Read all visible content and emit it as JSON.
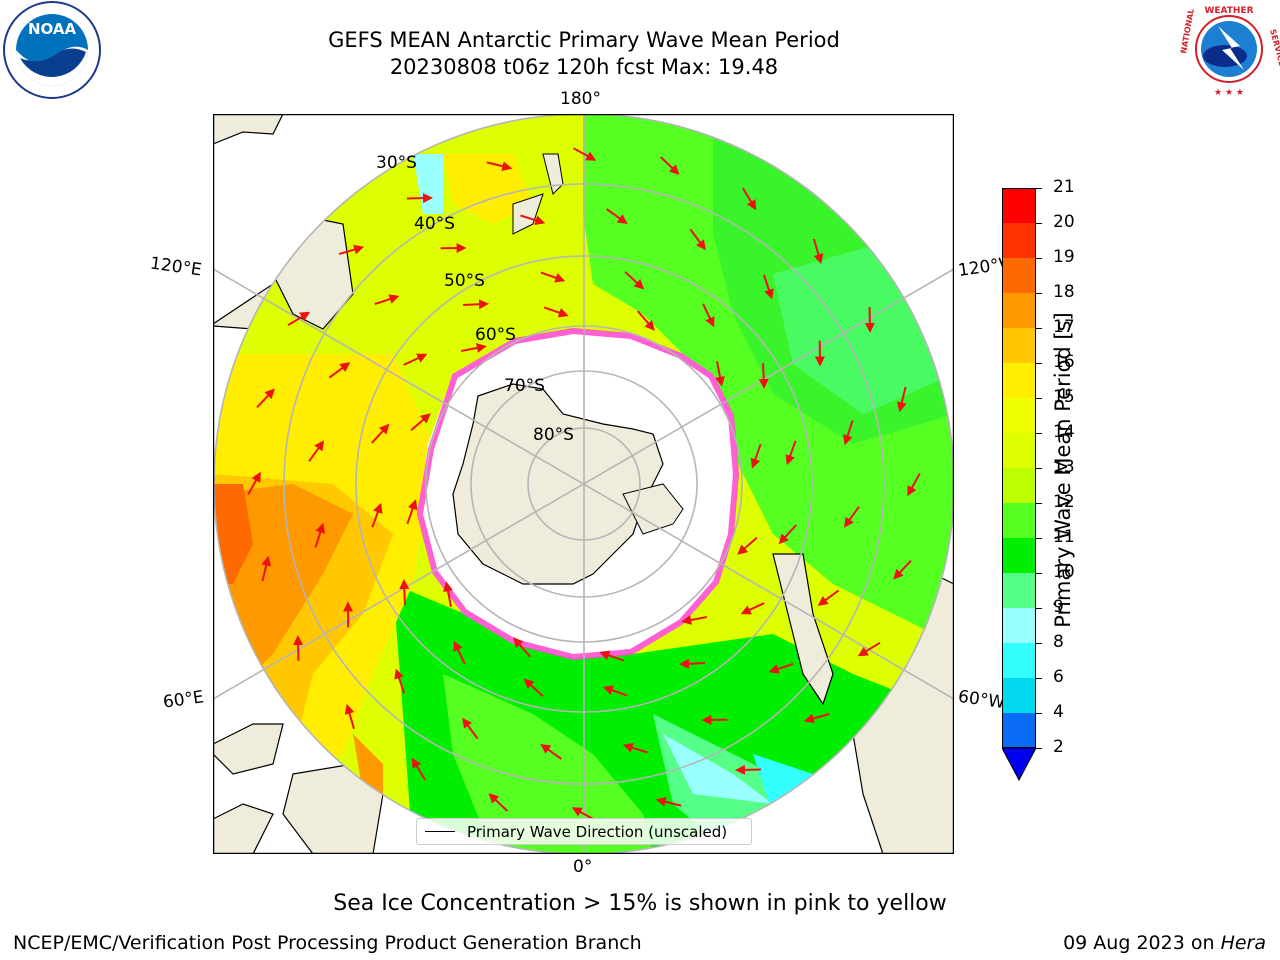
{
  "title": {
    "line1": "GEFS MEAN Antarctic Primary Wave Mean Period",
    "line2": "20230808 t06z 120h fcst   Max: 19.48"
  },
  "logos": {
    "left": "NOAA",
    "right": "NATIONAL WEATHER SERVICE"
  },
  "map": {
    "projection": "south-polar-stereographic",
    "longitude_labels": {
      "top": "180°",
      "bottom": "0°",
      "upper_left": "120°E",
      "upper_right": "120°W",
      "lower_left": "60°E",
      "lower_right": "60°W"
    },
    "latitude_labels": [
      "30°S",
      "40°S",
      "50°S",
      "60°S",
      "70°S",
      "80°S"
    ],
    "colors": {
      "land": "#efecdc",
      "grid": "#b5b5b5",
      "arrow": "#ee1111",
      "ice_pink": "#ff44cc"
    },
    "legend": "Primary Wave Direction (unscaled)"
  },
  "colorbar": {
    "label": "Primary Wave Mean Period [s]",
    "ticks": [
      "2",
      "4",
      "6",
      "8",
      "9",
      "10",
      "11",
      "12",
      "13",
      "14",
      "15",
      "16",
      "17",
      "18",
      "19",
      "20",
      "21"
    ],
    "colors": [
      "#0a6cf5",
      "#00d8f0",
      "#33ffff",
      "#99ffff",
      "#55ff88",
      "#00ee00",
      "#55ff22",
      "#bbff00",
      "#ddff00",
      "#f0ff00",
      "#ffee00",
      "#ffc800",
      "#ff9900",
      "#ff6a00",
      "#ff3300",
      "#ff0000"
    ],
    "extend_color": "#0000ee"
  },
  "sea_ice_note": "Sea Ice Concentration > 15% is shown in pink to yellow",
  "footer": {
    "left": "NCEP/EMC/Verification Post Processing Product Generation Branch",
    "right_date": "09 Aug 2023 on",
    "right_host": "Hera"
  }
}
